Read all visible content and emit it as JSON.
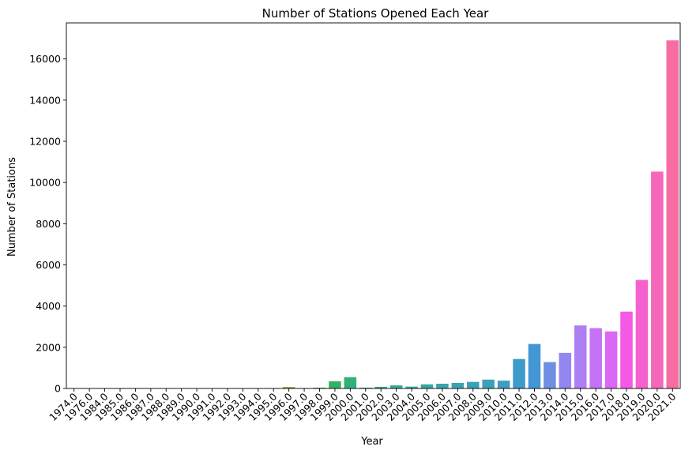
{
  "chart_data": {
    "type": "bar",
    "title": "Number of Stations Opened Each Year",
    "xlabel": "Year",
    "ylabel": "Number of Stations",
    "categories": [
      "1974.0",
      "1976.0",
      "1984.0",
      "1985.0",
      "1986.0",
      "1987.0",
      "1988.0",
      "1989.0",
      "1990.0",
      "1991.0",
      "1992.0",
      "1993.0",
      "1994.0",
      "1995.0",
      "1996.0",
      "1997.0",
      "1998.0",
      "1999.0",
      "2000.0",
      "2001.0",
      "2002.0",
      "2003.0",
      "2004.0",
      "2005.0",
      "2006.0",
      "2007.0",
      "2008.0",
      "2009.0",
      "2010.0",
      "2011.0",
      "2012.0",
      "2013.0",
      "2014.0",
      "2015.0",
      "2016.0",
      "2017.0",
      "2018.0",
      "2019.0",
      "2020.0",
      "2021.0"
    ],
    "values": [
      2,
      2,
      5,
      3,
      3,
      3,
      4,
      5,
      4,
      4,
      6,
      8,
      10,
      15,
      70,
      20,
      40,
      350,
      550,
      40,
      80,
      150,
      90,
      200,
      230,
      270,
      320,
      430,
      380,
      1430,
      2160,
      1280,
      1730,
      3060,
      2930,
      2770,
      3730,
      5270,
      10530,
      16900
    ],
    "colors": [
      "#f77189",
      "#f7754f",
      "#f77b38",
      "#f0802e",
      "#e5852e",
      "#d98b2e",
      "#ce8f31",
      "#c39532",
      "#b99a32",
      "#ae9d31",
      "#a3a031",
      "#99a431",
      "#8ca731",
      "#7fab31",
      "#6fae31",
      "#5ab132",
      "#40b43f",
      "#32b267",
      "#33b07a",
      "#34ae85",
      "#35ac8e",
      "#35aa96",
      "#36a99d",
      "#37a7a3",
      "#38a5a9",
      "#39a3af",
      "#3aa2b5",
      "#3ca0bc",
      "#3d9dc3",
      "#3e9ac9",
      "#4396d4",
      "#6e8fe4",
      "#9287f1",
      "#ad7ef4",
      "#c573f4",
      "#dc67f4",
      "#f45ae5",
      "#f561cf",
      "#f667b9",
      "#f66ca3"
    ],
    "yticks": [
      0,
      2000,
      4000,
      6000,
      8000,
      10000,
      12000,
      14000,
      16000
    ],
    "ylim": [
      0,
      17750
    ],
    "grid": false,
    "legend": "none"
  }
}
